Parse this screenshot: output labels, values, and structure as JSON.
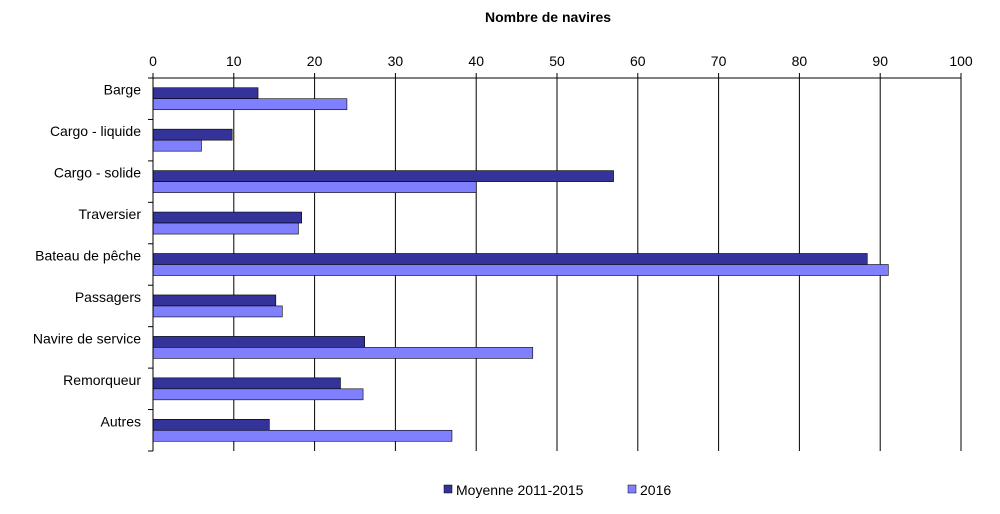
{
  "chart_data": {
    "type": "bar",
    "orientation": "horizontal",
    "title": "Nombre de navires",
    "xlabel": "",
    "ylabel": "",
    "xlim": [
      0,
      100
    ],
    "x_ticks": [
      "0",
      "10",
      "20",
      "30",
      "40",
      "50",
      "60",
      "70",
      "80",
      "90",
      "100"
    ],
    "grid": true,
    "legend_position": "bottom",
    "categories": [
      "Barge",
      "Cargo - liquide",
      "Cargo - solide",
      "Traversier",
      "Bateau de pêche",
      "Passagers",
      "Navire de service",
      "Remorqueur",
      "Autres"
    ],
    "series": [
      {
        "name": "Moyenne 2011-2015",
        "color": "#333399",
        "values": [
          13,
          9.8,
          57,
          18.4,
          88.4,
          15.2,
          26.2,
          23.2,
          14.4
        ]
      },
      {
        "name": "2016",
        "color": "#8080ff",
        "values": [
          24,
          6,
          40,
          18,
          91,
          16,
          47,
          26,
          37
        ]
      }
    ]
  }
}
